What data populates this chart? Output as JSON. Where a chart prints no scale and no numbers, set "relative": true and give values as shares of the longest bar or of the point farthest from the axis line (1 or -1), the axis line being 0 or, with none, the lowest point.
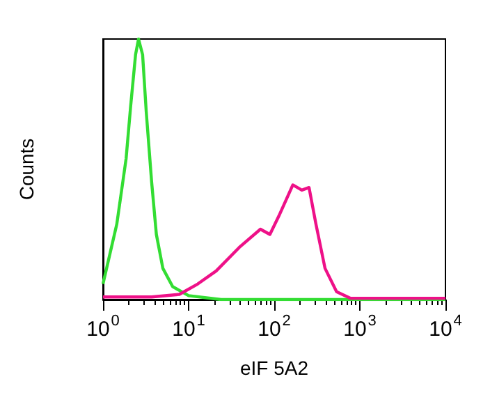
{
  "chart_data": {
    "type": "line",
    "relative": true,
    "xlabel": "eIF 5A2",
    "ylabel": "Counts",
    "log": "x",
    "marker": "none",
    "line_style": "solid",
    "xlim": [
      1,
      10000
    ],
    "xticks": [
      {
        "value": 1,
        "label": "10$^{0}$"
      },
      {
        "value": 10,
        "label": "10$^{1}$"
      },
      {
        "value": 100,
        "label": "10$^{2}$"
      },
      {
        "value": 1000,
        "label": "10$^{3}$"
      },
      {
        "value": 10000,
        "label": "10$^{4}$"
      }
    ],
    "series": [
      {
        "color": "#33dd33",
        "x": [
          1,
          1.45,
          1.86,
          2.1,
          2.4,
          2.6,
          2.9,
          3.2,
          3.7,
          4.2,
          5.0,
          6.5,
          10,
          24,
          600,
          10000
        ],
        "values": [
          0.06,
          0.29,
          0.54,
          0.74,
          0.94,
          1,
          0.94,
          0.72,
          0.45,
          0.25,
          0.12,
          0.05,
          0.015,
          0,
          0,
          0
        ]
      },
      {
        "color": "#ee1188",
        "x": [
          1,
          3.7,
          7.8,
          12.8,
          21,
          39,
          69,
          89,
          113,
          165,
          210,
          255,
          307,
          392,
          535,
          780,
          10000
        ],
        "values": [
          0.01,
          0.01,
          0.02,
          0.06,
          0.11,
          0.2,
          0.27,
          0.25,
          0.32,
          0.44,
          0.42,
          0.43,
          0.29,
          0.12,
          0.03,
          0.005,
          0.005
        ]
      }
    ]
  }
}
